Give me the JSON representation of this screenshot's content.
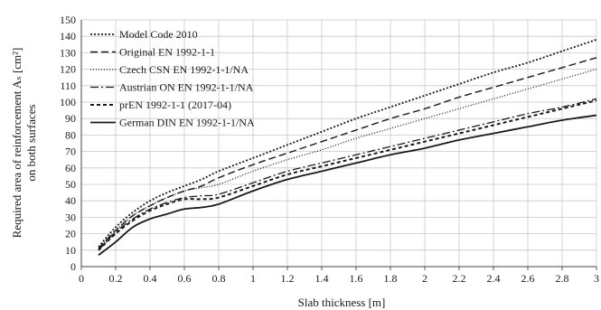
{
  "chart_data": {
    "type": "line",
    "xlabel": "Slab thickness [m]",
    "ylabel_line1": "Required area of reinforcement Aₛ [cm²]",
    "ylabel_line2": "on both surfaces",
    "xlim": [
      0,
      3
    ],
    "ylim": [
      0,
      150
    ],
    "grid": true,
    "legend_position": "top-left",
    "xticks": [
      "0",
      "0.2",
      "0.4",
      "0.6",
      "0.8",
      "1",
      "1.2",
      "1.4",
      "1.6",
      "1.8",
      "2",
      "2.2",
      "2.4",
      "2.6",
      "2.8",
      "3"
    ],
    "yticks": [
      "0",
      "10",
      "20",
      "30",
      "40",
      "50",
      "60",
      "70",
      "80",
      "90",
      "100",
      "110",
      "120",
      "130",
      "140",
      "150"
    ],
    "series": [
      {
        "name": "Model Code 2010",
        "dash": "2,2",
        "width": 1.8,
        "x": [
          0.1,
          0.2,
          0.3,
          0.4,
          0.5,
          0.6,
          0.7,
          0.8,
          1.0,
          1.2,
          1.4,
          1.6,
          1.8,
          2.0,
          2.2,
          2.4,
          2.6,
          2.8,
          3.0
        ],
        "y": [
          12,
          24,
          33,
          40,
          45,
          49,
          53,
          58,
          66,
          74,
          82,
          90,
          97,
          104,
          111,
          118,
          124,
          131,
          138
        ]
      },
      {
        "name": "Original EN 1992-1-1",
        "dash": "8,4",
        "width": 1.4,
        "x": [
          0.1,
          0.2,
          0.3,
          0.4,
          0.5,
          0.6,
          0.7,
          0.8,
          1.0,
          1.2,
          1.4,
          1.6,
          1.8,
          2.0,
          2.2,
          2.4,
          2.6,
          2.8,
          3.0
        ],
        "y": [
          11,
          22,
          31,
          37,
          42,
          46,
          49,
          54,
          62,
          69,
          76,
          83,
          90,
          96,
          103,
          109,
          115,
          121,
          127
        ]
      },
      {
        "name": "Czech CSN EN 1992-1-1/NA",
        "dash": "1,2",
        "width": 1.3,
        "x": [
          0.1,
          0.2,
          0.3,
          0.4,
          0.5,
          0.6,
          0.7,
          0.8,
          1.0,
          1.2,
          1.4,
          1.6,
          1.8,
          2.0,
          2.2,
          2.4,
          2.6,
          2.8,
          3.0
        ],
        "y": [
          11,
          22,
          31,
          37,
          42,
          46,
          48,
          50,
          58,
          65,
          71,
          78,
          84,
          90,
          96,
          102,
          108,
          114,
          120
        ]
      },
      {
        "name": "Austrian ON EN 1992-1-1/NA",
        "dash": "9,3,2,3",
        "width": 1.3,
        "x": [
          0.1,
          0.2,
          0.3,
          0.4,
          0.5,
          0.6,
          0.7,
          0.8,
          1.0,
          1.2,
          1.4,
          1.6,
          1.8,
          2.0,
          2.2,
          2.4,
          2.6,
          2.8,
          3.0
        ],
        "y": [
          10,
          21,
          29,
          35,
          39,
          42,
          43,
          44,
          51,
          58,
          63,
          68,
          73,
          78,
          83,
          88,
          93,
          97,
          102
        ]
      },
      {
        "name": "prEN 1992-1-1 (2017-04)",
        "dash": "4,3",
        "width": 2.0,
        "x": [
          0.1,
          0.2,
          0.3,
          0.4,
          0.5,
          0.6,
          0.7,
          0.8,
          1.0,
          1.2,
          1.4,
          1.6,
          1.8,
          2.0,
          2.2,
          2.4,
          2.6,
          2.8,
          3.0
        ],
        "y": [
          10,
          20,
          28,
          34,
          38,
          41,
          41,
          42,
          49,
          56,
          61,
          66,
          71,
          76,
          81,
          86,
          91,
          96,
          101
        ]
      },
      {
        "name": "German DIN EN 1992-1-1/NA",
        "dash": "",
        "width": 1.8,
        "x": [
          0.1,
          0.2,
          0.3,
          0.4,
          0.5,
          0.6,
          0.7,
          0.8,
          1.0,
          1.2,
          1.4,
          1.6,
          1.8,
          2.0,
          2.2,
          2.4,
          2.6,
          2.8,
          3.0
        ],
        "y": [
          7,
          15,
          24,
          29,
          32,
          35,
          36,
          38,
          46,
          53,
          58,
          63,
          68,
          72,
          77,
          81,
          85,
          89,
          92
        ]
      }
    ]
  }
}
